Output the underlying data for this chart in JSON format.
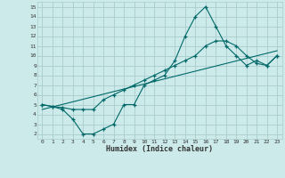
{
  "xlabel": "Humidex (Indice chaleur)",
  "ylabel": "",
  "bg_color": "#cceaea",
  "grid_color": "#aacccc",
  "line_color": "#006868",
  "xlim": [
    -0.5,
    23.5
  ],
  "ylim": [
    1.5,
    15.5
  ],
  "xticks": [
    0,
    1,
    2,
    3,
    4,
    5,
    6,
    7,
    8,
    9,
    10,
    11,
    12,
    13,
    14,
    15,
    16,
    17,
    18,
    19,
    20,
    21,
    22,
    23
  ],
  "yticks": [
    2,
    3,
    4,
    5,
    6,
    7,
    8,
    9,
    10,
    11,
    12,
    13,
    14,
    15
  ],
  "line1_x": [
    0,
    1,
    2,
    3,
    4,
    5,
    6,
    7,
    8,
    9,
    10,
    11,
    12,
    13,
    14,
    15,
    16,
    17,
    18,
    19,
    20,
    21,
    22,
    23
  ],
  "line1_y": [
    5,
    4.8,
    4.7,
    4.5,
    4.5,
    4.5,
    5.5,
    6,
    6.5,
    7,
    7.5,
    8,
    8.5,
    9,
    9.5,
    10,
    11,
    11.5,
    11.5,
    11,
    10,
    9.2,
    9,
    10
  ],
  "line2_x": [
    0,
    1,
    2,
    3,
    4,
    5,
    6,
    7,
    8,
    9,
    10,
    11,
    12,
    13,
    14,
    15,
    16,
    17,
    18,
    19,
    20,
    21,
    22,
    23
  ],
  "line2_y": [
    5,
    4.8,
    4.5,
    3.5,
    2,
    2,
    2.5,
    3,
    5,
    5,
    7,
    7.5,
    8,
    9.5,
    12,
    14,
    15,
    13,
    11,
    10,
    9,
    9.5,
    9,
    10
  ],
  "line3_x": [
    0,
    23
  ],
  "line3_y": [
    4.5,
    10.5
  ]
}
